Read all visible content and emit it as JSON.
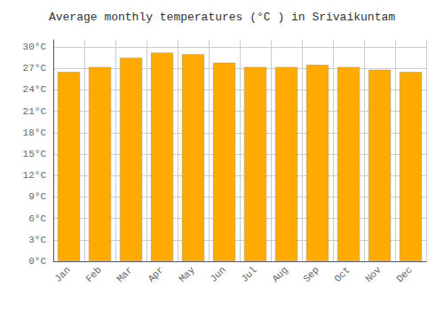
{
  "chart_data": {
    "type": "bar",
    "title": "Average monthly temperatures (°C ) in Srivaikuntam",
    "categories": [
      "Jan",
      "Feb",
      "Mar",
      "Apr",
      "May",
      "Jun",
      "Jul",
      "Aug",
      "Sep",
      "Oct",
      "Nov",
      "Dec"
    ],
    "values": [
      26.5,
      27.2,
      28.5,
      29.2,
      29.0,
      27.8,
      27.2,
      27.2,
      27.5,
      27.2,
      26.8,
      26.5
    ],
    "color": "#FFAA00",
    "ylim": [
      0,
      31
    ],
    "yticks": [
      {
        "value": 0,
        "label": "0°C"
      },
      {
        "value": 3,
        "label": "3°C"
      },
      {
        "value": 6,
        "label": "6°C"
      },
      {
        "value": 9,
        "label": "9°C"
      },
      {
        "value": 12,
        "label": "12°C"
      },
      {
        "value": 15,
        "label": "15°C"
      },
      {
        "value": 18,
        "label": "18°C"
      },
      {
        "value": 21,
        "label": "21°C"
      },
      {
        "value": 24,
        "label": "24°C"
      },
      {
        "value": 27,
        "label": "27°C"
      },
      {
        "value": 30,
        "label": "30°C"
      }
    ],
    "grid": true
  }
}
